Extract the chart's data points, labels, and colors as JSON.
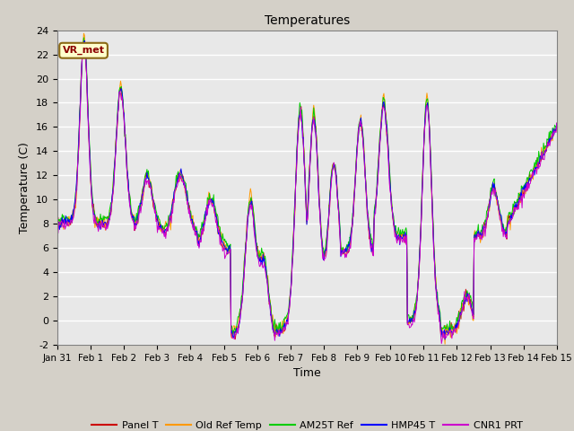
{
  "title": "Temperatures",
  "xlabel": "Time",
  "ylabel": "Temperature (C)",
  "ylim": [
    -2,
    24
  ],
  "yticks": [
    -2,
    0,
    2,
    4,
    6,
    8,
    10,
    12,
    14,
    16,
    18,
    20,
    22,
    24
  ],
  "xtick_labels": [
    "Jan 31",
    "Feb 1",
    "Feb 2",
    "Feb 3",
    "Feb 4",
    "Feb 5",
    "Feb 6",
    "Feb 7",
    "Feb 8",
    "Feb 9",
    "Feb 10",
    "Feb 11",
    "Feb 12",
    "Feb 13",
    "Feb 14",
    "Feb 15"
  ],
  "annotation_text": "VR_met",
  "colors": {
    "Panel T": "#cc0000",
    "Old Ref Temp": "#ff9900",
    "AM25T Ref": "#00cc00",
    "HMP45 T": "#0000ff",
    "CNR1 PRT": "#cc00cc"
  },
  "legend_labels": [
    "Panel T",
    "Old Ref Temp",
    "AM25T Ref",
    "HMP45 T",
    "CNR1 PRT"
  ],
  "fig_bg": "#d4d0c8",
  "plot_bg": "#e8e8e8",
  "grid_color": "#ffffff",
  "n_points": 720,
  "lw": 0.7
}
